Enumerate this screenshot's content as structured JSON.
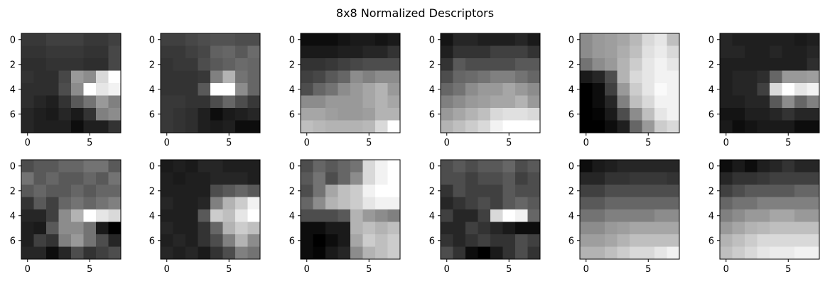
{
  "figure": {
    "title": "8x8 Normalized Descriptors"
  },
  "chart_data": {
    "type": "heatmap",
    "colormap": "gray",
    "value_range": [
      0,
      1
    ],
    "grid": false,
    "xticks": [
      "0",
      "5"
    ],
    "yticks": [
      "0",
      "2",
      "4",
      "6"
    ],
    "grid_layout": {
      "rows": 2,
      "cols": 6
    },
    "panels": [
      {
        "values": [
          [
            0.22,
            0.22,
            0.25,
            0.25,
            0.25,
            0.22,
            0.22,
            0.25
          ],
          [
            0.2,
            0.2,
            0.22,
            0.22,
            0.22,
            0.2,
            0.2,
            0.28
          ],
          [
            0.18,
            0.18,
            0.2,
            0.2,
            0.2,
            0.18,
            0.18,
            0.28
          ],
          [
            0.2,
            0.18,
            0.18,
            0.28,
            0.6,
            0.55,
            0.85,
            1.0
          ],
          [
            0.18,
            0.18,
            0.18,
            0.3,
            0.55,
            1.0,
            0.9,
            0.95
          ],
          [
            0.18,
            0.15,
            0.12,
            0.2,
            0.35,
            0.45,
            0.6,
            0.5
          ],
          [
            0.15,
            0.12,
            0.1,
            0.15,
            0.1,
            0.2,
            0.5,
            0.55
          ],
          [
            0.15,
            0.12,
            0.12,
            0.12,
            0.05,
            0.12,
            0.12,
            0.2
          ]
        ]
      },
      {
        "values": [
          [
            0.25,
            0.25,
            0.28,
            0.3,
            0.32,
            0.32,
            0.3,
            0.3
          ],
          [
            0.22,
            0.22,
            0.25,
            0.28,
            0.38,
            0.4,
            0.35,
            0.42
          ],
          [
            0.2,
            0.22,
            0.22,
            0.3,
            0.35,
            0.38,
            0.42,
            0.4
          ],
          [
            0.2,
            0.2,
            0.2,
            0.22,
            0.5,
            0.7,
            0.45,
            0.4
          ],
          [
            0.2,
            0.2,
            0.2,
            0.35,
            1.0,
            1.0,
            0.55,
            0.4
          ],
          [
            0.22,
            0.22,
            0.2,
            0.2,
            0.3,
            0.4,
            0.3,
            0.22
          ],
          [
            0.22,
            0.2,
            0.18,
            0.12,
            0.05,
            0.1,
            0.12,
            0.15
          ],
          [
            0.22,
            0.2,
            0.18,
            0.12,
            0.1,
            0.12,
            0.05,
            0.05
          ]
        ]
      },
      {
        "values": [
          [
            0.05,
            0.05,
            0.05,
            0.08,
            0.1,
            0.1,
            0.08,
            0.1
          ],
          [
            0.1,
            0.1,
            0.1,
            0.12,
            0.12,
            0.15,
            0.15,
            0.2
          ],
          [
            0.2,
            0.2,
            0.22,
            0.25,
            0.28,
            0.3,
            0.3,
            0.3
          ],
          [
            0.25,
            0.28,
            0.35,
            0.4,
            0.55,
            0.5,
            0.55,
            0.55
          ],
          [
            0.3,
            0.4,
            0.45,
            0.55,
            0.6,
            0.65,
            0.7,
            0.6
          ],
          [
            0.55,
            0.55,
            0.6,
            0.6,
            0.6,
            0.65,
            0.7,
            0.65
          ],
          [
            0.65,
            0.65,
            0.62,
            0.6,
            0.6,
            0.62,
            0.7,
            0.7
          ],
          [
            0.75,
            0.72,
            0.7,
            0.7,
            0.7,
            0.72,
            0.85,
            1.0
          ]
        ]
      },
      {
        "values": [
          [
            0.08,
            0.15,
            0.15,
            0.12,
            0.12,
            0.12,
            0.15,
            0.1
          ],
          [
            0.12,
            0.2,
            0.2,
            0.2,
            0.25,
            0.25,
            0.25,
            0.2
          ],
          [
            0.2,
            0.35,
            0.3,
            0.3,
            0.3,
            0.3,
            0.35,
            0.35
          ],
          [
            0.3,
            0.4,
            0.42,
            0.45,
            0.5,
            0.5,
            0.45,
            0.4
          ],
          [
            0.4,
            0.45,
            0.55,
            0.6,
            0.6,
            0.65,
            0.6,
            0.55
          ],
          [
            0.5,
            0.55,
            0.6,
            0.62,
            0.65,
            0.65,
            0.7,
            0.6
          ],
          [
            0.6,
            0.65,
            0.7,
            0.75,
            0.85,
            0.88,
            0.88,
            0.85
          ],
          [
            0.7,
            0.75,
            0.8,
            0.85,
            0.95,
            1.0,
            1.0,
            1.0
          ]
        ]
      },
      {
        "values": [
          [
            0.55,
            0.6,
            0.62,
            0.65,
            0.72,
            0.85,
            0.9,
            0.75
          ],
          [
            0.55,
            0.6,
            0.62,
            0.68,
            0.75,
            0.88,
            0.92,
            0.85
          ],
          [
            0.45,
            0.55,
            0.6,
            0.7,
            0.8,
            0.9,
            0.95,
            0.9
          ],
          [
            0.1,
            0.15,
            0.3,
            0.7,
            0.85,
            0.9,
            0.95,
            0.95
          ],
          [
            0.0,
            0.05,
            0.25,
            0.6,
            0.8,
            0.9,
            0.98,
            0.95
          ],
          [
            0.0,
            0.05,
            0.15,
            0.5,
            0.75,
            0.85,
            0.95,
            0.95
          ],
          [
            0.0,
            0.02,
            0.1,
            0.3,
            0.55,
            0.75,
            0.9,
            0.95
          ],
          [
            0.0,
            0.0,
            0.05,
            0.12,
            0.4,
            0.6,
            0.8,
            0.85
          ]
        ]
      },
      {
        "values": [
          [
            0.15,
            0.12,
            0.12,
            0.12,
            0.12,
            0.12,
            0.1,
            0.12
          ],
          [
            0.15,
            0.15,
            0.12,
            0.12,
            0.15,
            0.12,
            0.12,
            0.15
          ],
          [
            0.12,
            0.12,
            0.12,
            0.12,
            0.12,
            0.12,
            0.12,
            0.18
          ],
          [
            0.12,
            0.15,
            0.15,
            0.18,
            0.4,
            0.6,
            0.6,
            0.62
          ],
          [
            0.12,
            0.15,
            0.15,
            0.25,
            0.85,
            1.0,
            0.9,
            0.95
          ],
          [
            0.12,
            0.12,
            0.15,
            0.15,
            0.35,
            0.55,
            0.4,
            0.5
          ],
          [
            0.08,
            0.08,
            0.12,
            0.12,
            0.15,
            0.2,
            0.15,
            0.15
          ],
          [
            0.1,
            0.05,
            0.08,
            0.1,
            0.1,
            0.1,
            0.05,
            0.05
          ]
        ]
      },
      {
        "values": [
          [
            0.3,
            0.35,
            0.35,
            0.4,
            0.4,
            0.45,
            0.45,
            0.35
          ],
          [
            0.45,
            0.35,
            0.4,
            0.35,
            0.35,
            0.4,
            0.35,
            0.45
          ],
          [
            0.35,
            0.4,
            0.35,
            0.35,
            0.4,
            0.35,
            0.4,
            0.4
          ],
          [
            0.2,
            0.35,
            0.25,
            0.4,
            0.45,
            0.4,
            0.45,
            0.5
          ],
          [
            0.15,
            0.15,
            0.25,
            0.55,
            0.7,
            1.0,
            0.9,
            0.85
          ],
          [
            0.12,
            0.1,
            0.35,
            0.55,
            0.55,
            0.45,
            0.1,
            0.0
          ],
          [
            0.12,
            0.25,
            0.2,
            0.5,
            0.6,
            0.45,
            0.3,
            0.15
          ],
          [
            0.15,
            0.15,
            0.05,
            0.15,
            0.3,
            0.2,
            0.25,
            0.3
          ]
        ]
      },
      {
        "values": [
          [
            0.1,
            0.12,
            0.1,
            0.15,
            0.15,
            0.12,
            0.12,
            0.12
          ],
          [
            0.12,
            0.1,
            0.12,
            0.12,
            0.15,
            0.15,
            0.15,
            0.12
          ],
          [
            0.12,
            0.12,
            0.12,
            0.12,
            0.3,
            0.35,
            0.4,
            0.35
          ],
          [
            0.15,
            0.12,
            0.12,
            0.15,
            0.5,
            0.7,
            0.8,
            0.95
          ],
          [
            0.12,
            0.12,
            0.12,
            0.35,
            0.8,
            0.75,
            0.9,
            1.0
          ],
          [
            0.15,
            0.12,
            0.12,
            0.2,
            0.4,
            0.7,
            0.8,
            0.75
          ],
          [
            0.12,
            0.15,
            0.12,
            0.2,
            0.3,
            0.5,
            0.7,
            0.55
          ],
          [
            0.15,
            0.12,
            0.15,
            0.1,
            0.2,
            0.3,
            0.5,
            0.45
          ]
        ]
      },
      {
        "values": [
          [
            0.3,
            0.4,
            0.35,
            0.4,
            0.45,
            0.85,
            0.95,
            1.0
          ],
          [
            0.35,
            0.45,
            0.3,
            0.4,
            0.55,
            0.85,
            0.95,
            1.0
          ],
          [
            0.3,
            0.45,
            0.65,
            0.75,
            0.8,
            0.95,
            1.0,
            1.0
          ],
          [
            0.4,
            0.55,
            0.7,
            0.75,
            0.8,
            0.9,
            0.95,
            0.95
          ],
          [
            0.3,
            0.3,
            0.3,
            0.35,
            0.7,
            0.6,
            0.55,
            0.5
          ],
          [
            0.05,
            0.05,
            0.1,
            0.1,
            0.7,
            0.75,
            0.7,
            0.75
          ],
          [
            0.05,
            0.0,
            0.05,
            0.1,
            0.65,
            0.8,
            0.75,
            0.8
          ],
          [
            0.05,
            0.02,
            0.1,
            0.15,
            0.55,
            0.7,
            0.75,
            0.8
          ]
        ]
      },
      {
        "values": [
          [
            0.3,
            0.35,
            0.3,
            0.35,
            0.35,
            0.4,
            0.3,
            0.35
          ],
          [
            0.3,
            0.3,
            0.25,
            0.3,
            0.3,
            0.35,
            0.25,
            0.3
          ],
          [
            0.2,
            0.3,
            0.25,
            0.25,
            0.25,
            0.35,
            0.3,
            0.3
          ],
          [
            0.15,
            0.2,
            0.25,
            0.3,
            0.25,
            0.35,
            0.4,
            0.35
          ],
          [
            0.25,
            0.15,
            0.15,
            0.25,
            0.85,
            1.0,
            0.95,
            0.4
          ],
          [
            0.15,
            0.15,
            0.25,
            0.2,
            0.15,
            0.1,
            0.05,
            0.05
          ],
          [
            0.2,
            0.15,
            0.2,
            0.25,
            0.2,
            0.2,
            0.3,
            0.25
          ],
          [
            0.3,
            0.2,
            0.05,
            0.0,
            0.1,
            0.2,
            0.3,
            0.2
          ]
        ]
      },
      {
        "values": [
          [
            0.05,
            0.1,
            0.12,
            0.15,
            0.15,
            0.15,
            0.15,
            0.15
          ],
          [
            0.15,
            0.15,
            0.2,
            0.2,
            0.22,
            0.22,
            0.22,
            0.2
          ],
          [
            0.25,
            0.25,
            0.3,
            0.3,
            0.3,
            0.3,
            0.3,
            0.3
          ],
          [
            0.35,
            0.35,
            0.4,
            0.4,
            0.4,
            0.4,
            0.4,
            0.4
          ],
          [
            0.45,
            0.45,
            0.5,
            0.5,
            0.5,
            0.5,
            0.55,
            0.55
          ],
          [
            0.55,
            0.55,
            0.6,
            0.62,
            0.65,
            0.65,
            0.65,
            0.65
          ],
          [
            0.62,
            0.62,
            0.65,
            0.7,
            0.75,
            0.75,
            0.75,
            0.75
          ],
          [
            0.7,
            0.7,
            0.75,
            0.8,
            0.85,
            0.85,
            0.9,
            0.95
          ]
        ]
      },
      {
        "values": [
          [
            0.05,
            0.1,
            0.05,
            0.12,
            0.15,
            0.2,
            0.15,
            0.15
          ],
          [
            0.15,
            0.2,
            0.2,
            0.22,
            0.25,
            0.25,
            0.25,
            0.25
          ],
          [
            0.25,
            0.3,
            0.35,
            0.35,
            0.35,
            0.35,
            0.4,
            0.4
          ],
          [
            0.4,
            0.45,
            0.45,
            0.5,
            0.5,
            0.5,
            0.5,
            0.5
          ],
          [
            0.5,
            0.55,
            0.6,
            0.6,
            0.65,
            0.65,
            0.6,
            0.6
          ],
          [
            0.6,
            0.65,
            0.7,
            0.72,
            0.75,
            0.75,
            0.75,
            0.75
          ],
          [
            0.7,
            0.75,
            0.8,
            0.85,
            0.85,
            0.85,
            0.85,
            0.85
          ],
          [
            0.75,
            0.8,
            0.85,
            0.9,
            0.92,
            0.92,
            0.95,
            0.95
          ]
        ]
      }
    ]
  }
}
